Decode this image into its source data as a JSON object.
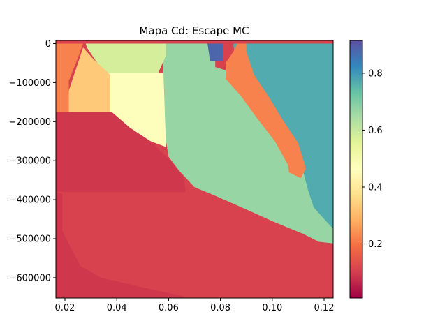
{
  "chart_data": {
    "type": "heatmap",
    "title": "Mapa Cd: Escape MC",
    "xlabel": "",
    "ylabel": "",
    "xlim": [
      0.0165,
      0.1235
    ],
    "ylim": [
      -652000,
      8000
    ],
    "x_ticks": [
      0.02,
      0.04,
      0.06,
      0.08,
      0.1,
      0.12
    ],
    "x_tick_labels": [
      "0.02",
      "0.04",
      "0.06",
      "0.08",
      "0.10",
      "0.12"
    ],
    "y_ticks": [
      0,
      -100000,
      -200000,
      -300000,
      -400000,
      -500000,
      -600000
    ],
    "y_tick_labels": [
      "0",
      "−100000",
      "−200000",
      "−300000",
      "−400000",
      "−500000",
      "−600000"
    ],
    "colormap": "Spectral",
    "colorbar": {
      "range": [
        0.01,
        0.915
      ],
      "ticks": [
        0.2,
        0.4,
        0.6,
        0.8
      ],
      "tick_labels": [
        "0.2",
        "0.4",
        "0.6",
        "0.8"
      ]
    },
    "grid": false,
    "regions": [
      {
        "value": 0.77,
        "points": [
          [
            0.085,
            0
          ],
          [
            0.1235,
            0
          ],
          [
            0.1235,
            -500000
          ],
          [
            0.118,
            -495000
          ],
          [
            0.112,
            -440000
          ],
          [
            0.106,
            -375000
          ],
          [
            0.1,
            -300000
          ],
          [
            0.098,
            -250000
          ],
          [
            0.092,
            -175000
          ],
          [
            0.087,
            -105000
          ],
          [
            0.085,
            -5000
          ]
        ]
      },
      {
        "value": 0.67,
        "points": [
          [
            0.059,
            0
          ],
          [
            0.076,
            0
          ],
          [
            0.078,
            -8000
          ],
          [
            0.078,
            -60000
          ],
          [
            0.09,
            -85000
          ],
          [
            0.095,
            -120000
          ],
          [
            0.099,
            -160000
          ],
          [
            0.103,
            -210000
          ],
          [
            0.108,
            -260000
          ],
          [
            0.112,
            -330000
          ],
          [
            0.114,
            -380000
          ],
          [
            0.116,
            -420000
          ],
          [
            0.1235,
            -475000
          ],
          [
            0.1235,
            -512000
          ],
          [
            0.118,
            -508000
          ],
          [
            0.112,
            -488000
          ],
          [
            0.1,
            -455000
          ],
          [
            0.09,
            -425000
          ],
          [
            0.078,
            -390000
          ],
          [
            0.07,
            -368000
          ],
          [
            0.064,
            -325000
          ],
          [
            0.06,
            -290000
          ],
          [
            0.059,
            -250000
          ],
          [
            0.057,
            -200000
          ],
          [
            0.058,
            -40000
          ]
        ]
      },
      {
        "value": 0.58,
        "points": [
          [
            0.028,
            0
          ],
          [
            0.059,
            0
          ],
          [
            0.059,
            -30000
          ],
          [
            0.056,
            -75000
          ],
          [
            0.036,
            -78000
          ],
          [
            0.032,
            -45000
          ],
          [
            0.0285,
            -10000
          ]
        ]
      },
      {
        "value": 0.47,
        "points": [
          [
            0.036,
            -75000
          ],
          [
            0.058,
            -75000
          ],
          [
            0.059,
            -265000
          ],
          [
            0.053,
            -250000
          ],
          [
            0.047,
            -240000
          ],
          [
            0.042,
            -220000
          ],
          [
            0.038,
            -195000
          ],
          [
            0.036,
            -180000
          ]
        ]
      },
      {
        "value": 0.33,
        "points": [
          [
            0.027,
            -10000
          ],
          [
            0.031,
            -40000
          ],
          [
            0.0375,
            -80000
          ],
          [
            0.0375,
            -180000
          ],
          [
            0.021,
            -180000
          ],
          [
            0.0215,
            -120000
          ]
        ]
      },
      {
        "value": 0.22,
        "points": [
          [
            0.0165,
            0
          ],
          [
            0.027,
            0
          ],
          [
            0.0245,
            -45000
          ],
          [
            0.0215,
            -95000
          ],
          [
            0.0215,
            -175000
          ],
          [
            0.0165,
            -175000
          ]
        ]
      },
      {
        "value": 0.22,
        "points": [
          [
            0.0865,
            0
          ],
          [
            0.085,
            -20000
          ],
          [
            0.082,
            -50000
          ],
          [
            0.082,
            -90000
          ],
          [
            0.088,
            -135000
          ],
          [
            0.094,
            -190000
          ],
          [
            0.101,
            -250000
          ],
          [
            0.106,
            -310000
          ],
          [
            0.1065,
            -330000
          ],
          [
            0.111,
            -345000
          ],
          [
            0.113,
            -320000
          ],
          [
            0.11,
            -255000
          ],
          [
            0.104,
            -195000
          ],
          [
            0.099,
            -140000
          ],
          [
            0.093,
            -80000
          ],
          [
            0.09,
            -20000
          ],
          [
            0.09,
            0
          ]
        ]
      },
      {
        "value": 0.09,
        "points": [
          [
            0.0165,
            -175000
          ],
          [
            0.038,
            -175000
          ],
          [
            0.045,
            -215000
          ],
          [
            0.053,
            -250000
          ],
          [
            0.06,
            -295000
          ],
          [
            0.066,
            -345000
          ],
          [
            0.0665,
            -380000
          ],
          [
            0.028,
            -380000
          ],
          [
            0.0165,
            -380000
          ]
        ]
      },
      {
        "value": 0.09,
        "points": [
          [
            0.0165,
            -380000
          ],
          [
            0.019,
            -385000
          ],
          [
            0.019,
            -480000
          ],
          [
            0.022,
            -520000
          ],
          [
            0.026,
            -570000
          ],
          [
            0.034,
            -600000
          ],
          [
            0.05,
            -625000
          ],
          [
            0.066,
            -648000
          ],
          [
            0.066,
            -652000
          ],
          [
            0.0165,
            -652000
          ]
        ]
      },
      {
        "value": 0.88,
        "points": [
          [
            0.075,
            0
          ],
          [
            0.081,
            0
          ],
          [
            0.081,
            -45000
          ],
          [
            0.076,
            -45000
          ]
        ]
      }
    ]
  }
}
